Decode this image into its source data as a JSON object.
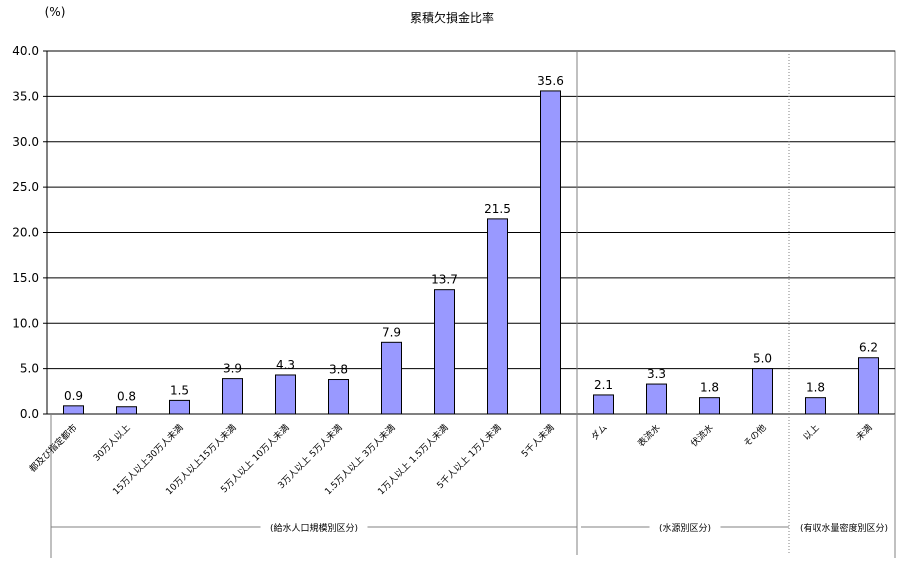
{
  "chart_data": {
    "type": "bar",
    "title": "累積欠損金比率",
    "ylabel": "(%)",
    "ylim": [
      0,
      40
    ],
    "yticks": [
      "0.0",
      "5.0",
      "10.0",
      "15.0",
      "20.0",
      "25.0",
      "30.0",
      "35.0",
      "40.0"
    ],
    "grid": true,
    "categories": [
      "都及び指定都市",
      "30万人以上",
      "15万人以上30万人未満",
      "10万人以上15万人未満",
      "5万人以上 10万人未満",
      "3万人以上 5万人未満",
      "1.5万人以上 3万人未満",
      "1万人以上 1.5万人未満",
      "5千人以上 1万人未満",
      "5千人未満",
      "ダム",
      "表流水",
      "伏流水",
      "その他",
      "以上",
      "未満"
    ],
    "values": [
      0.9,
      0.8,
      1.5,
      3.9,
      4.3,
      3.8,
      7.9,
      13.7,
      21.5,
      35.6,
      2.1,
      3.3,
      1.8,
      5.0,
      1.8,
      6.2
    ],
    "value_labels": [
      "0.9",
      "0.8",
      "1.5",
      "3.9",
      "4.3",
      "3.8",
      "7.9",
      "13.7",
      "21.5",
      "35.6",
      "2.1",
      "3.3",
      "1.8",
      "5.0",
      "1.8",
      "6.2"
    ],
    "groups": [
      {
        "label": "(給水人口規模別区分)",
        "start": 0,
        "end": 9
      },
      {
        "label": "(水源別区分)",
        "start": 10,
        "end": 13
      },
      {
        "label": "(有収水量密度別区分)",
        "start": 14,
        "end": 15
      }
    ],
    "colors": {
      "bar_fill": "#9999ff",
      "bar_stroke": "#000000",
      "grid": "#000000"
    }
  }
}
